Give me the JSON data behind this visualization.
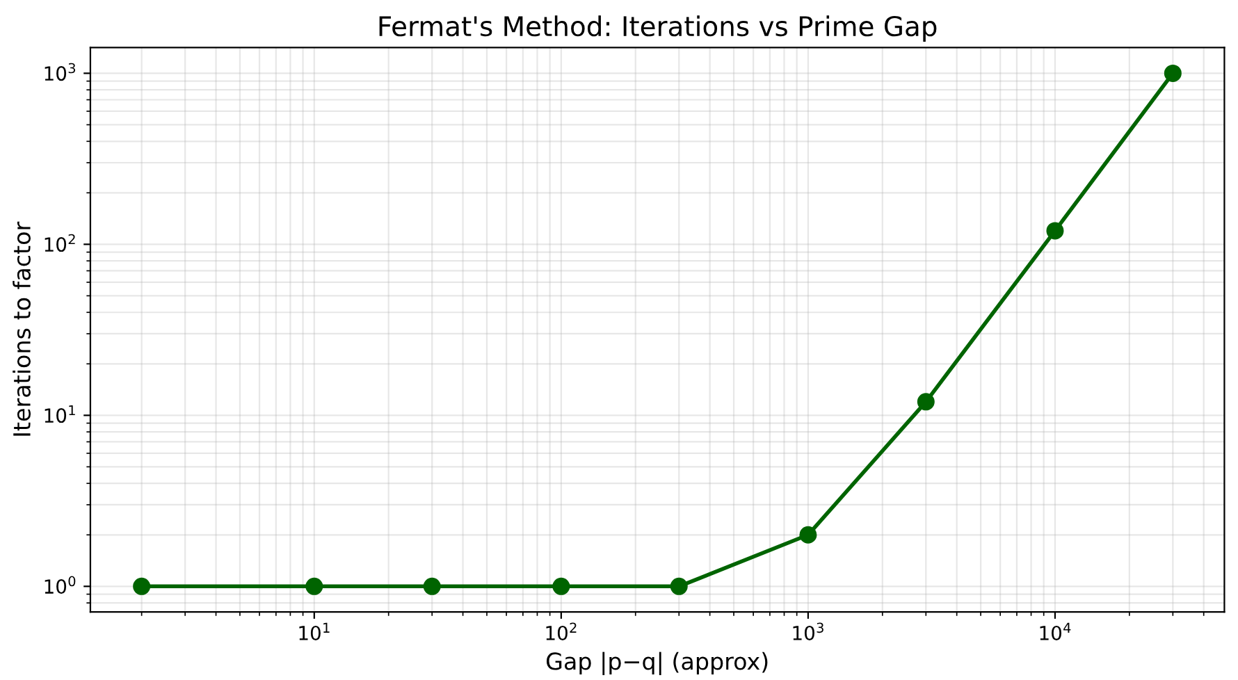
{
  "chart_data": {
    "type": "line",
    "title": "Fermat's Method: Iterations vs Prime Gap",
    "xlabel": "Gap |p−q| (approx)",
    "ylabel": "Iterations to factor",
    "x": [
      2,
      10,
      30,
      100,
      300,
      1000,
      3000,
      10000,
      30000
    ],
    "series": [
      {
        "color": "#006400",
        "values": [
          1,
          1,
          1,
          1,
          1,
          2,
          12,
          120,
          1000
        ]
      }
    ],
    "log": "xy",
    "marker": "circle",
    "line_style": "solid",
    "grid": true,
    "xlim": [
      1.24,
      48500
    ],
    "ylim": [
      0.708,
      1413
    ],
    "xticks": [
      {
        "value": 10,
        "label": "10$^{1}$"
      },
      {
        "value": 100,
        "label": "10$^{2}$"
      },
      {
        "value": 1000,
        "label": "10$^{3}$"
      },
      {
        "value": 10000,
        "label": "10$^{4}$"
      }
    ],
    "yticks": [
      {
        "value": 1,
        "label": "10$^{0}$"
      },
      {
        "value": 10,
        "label": "10$^{1}$"
      },
      {
        "value": 100,
        "label": "10$^{2}$"
      },
      {
        "value": 1000,
        "label": "10$^{3}$"
      }
    ]
  }
}
